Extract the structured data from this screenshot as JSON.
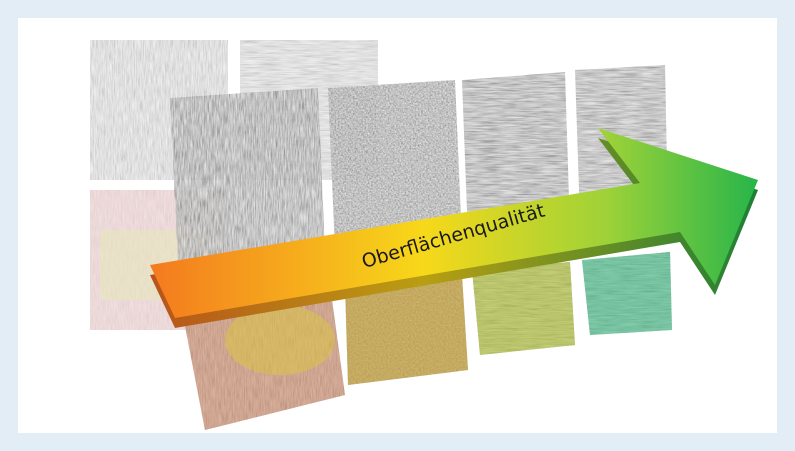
{
  "arrow": {
    "label": "Oberflächenqualität"
  }
}
